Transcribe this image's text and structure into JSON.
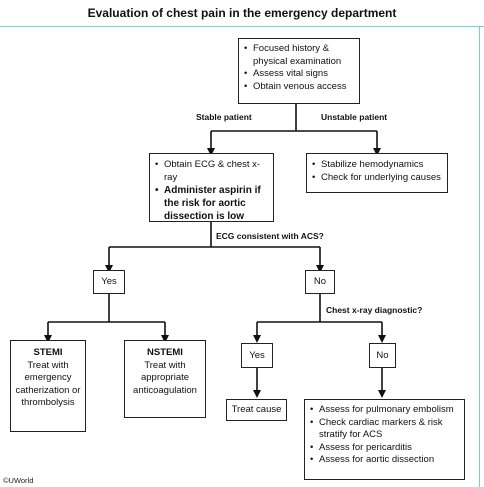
{
  "title": "Evaluation of chest pain in the emergency department",
  "top_box": [
    "Focused history & physical examination",
    "Assess vital signs",
    "Obtain venous access"
  ],
  "stable_label": "Stable patient",
  "unstable_label": "Unstable patient",
  "stable_box": {
    "item1": "Obtain ECG & chest x-ray",
    "item2": "Administer aspirin if the risk for aortic dissection is low"
  },
  "unstable_box": [
    "Stabilize hemodynamics",
    "Check for underlying causes"
  ],
  "ecg_question": "ECG consistent with ACS?",
  "yes_label": "Yes",
  "no_label": "No",
  "stemi": {
    "title": "STEMI",
    "text": "Treat with emergency catherization or thrombolysis"
  },
  "nstemi": {
    "title": "NSTEMI",
    "text": "Treat with appropriate anticoagulation"
  },
  "xray_question": "Chest x-ray diagnostic?",
  "xray_yes": "Yes",
  "xray_no": "No",
  "treat_cause": "Treat cause",
  "final_box": [
    "Assess for pulmonary embolism",
    "Check cardiac markers & risk stratify for ACS",
    "Assess for pericarditis",
    "Assess for aortic dissection"
  ],
  "footer": "©UWorld"
}
